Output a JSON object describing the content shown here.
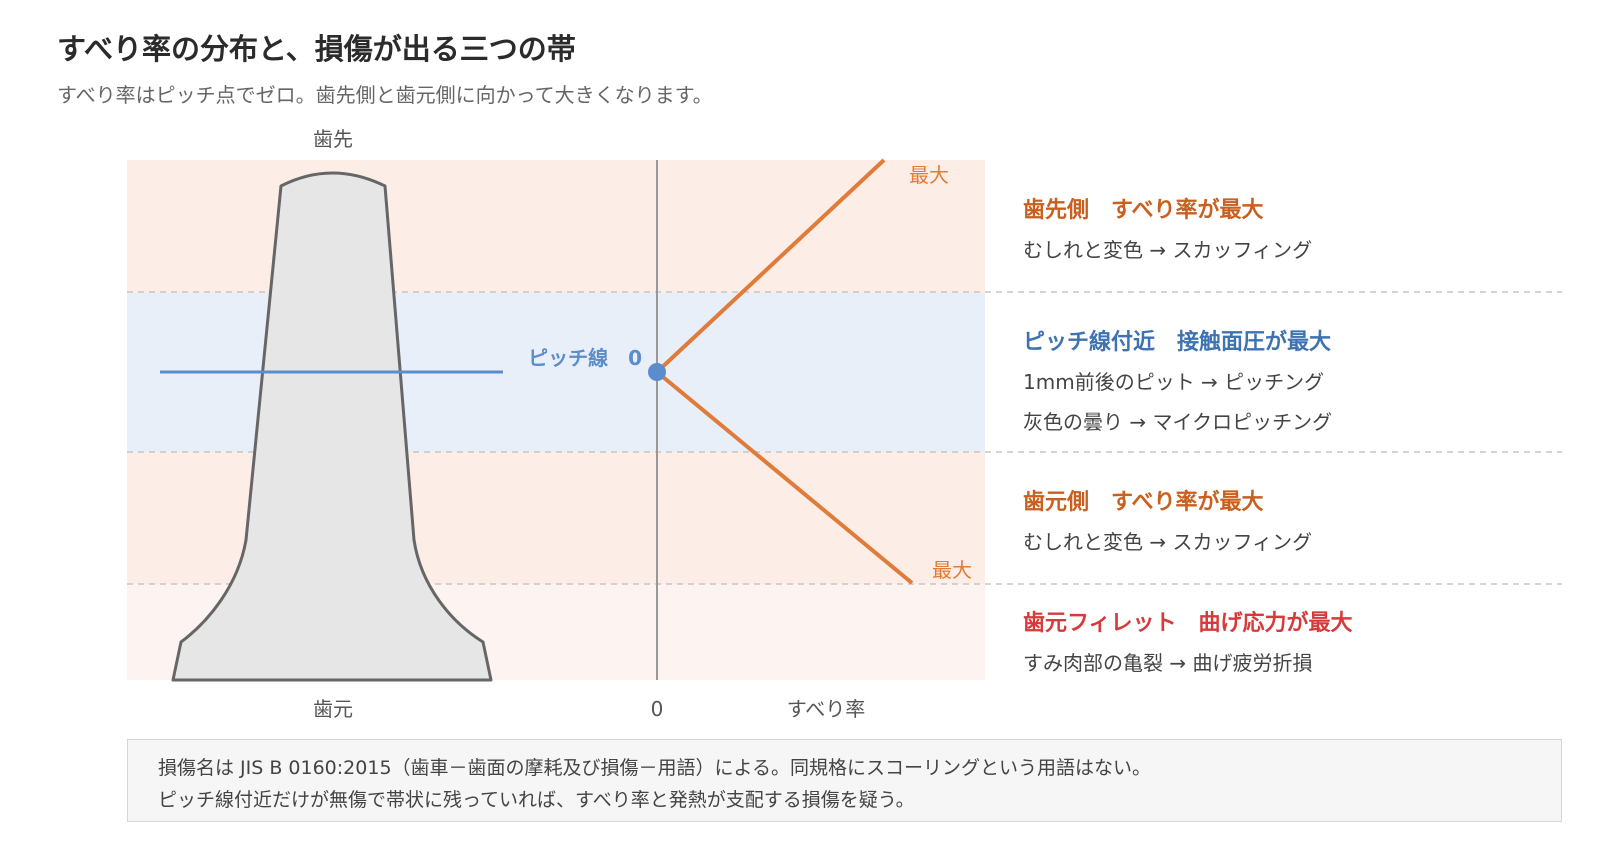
{
  "header": {
    "title": "すべり率の分布と、損傷が出る三つの帯",
    "subtitle": "すべり率はピッチ点でゼロ。歯先側と歯元側に向かって大きくなります。"
  },
  "diagram": {
    "tip_label": "歯先",
    "root_label": "歯元",
    "pitch_line_label": "ピッチ線　0",
    "zero_label": "0",
    "axis_label": "すべり率",
    "max_top_label": "最大",
    "max_bottom_label": "最大"
  },
  "zones": [
    {
      "title": "歯先側　すべり率が最大",
      "desc": [
        "むしれと変色 → スカッフィング"
      ],
      "title_color": "#c9601f"
    },
    {
      "title": "ピッチ線付近　接触面圧が最大",
      "desc": [
        "1mm前後のピット → ピッチング",
        "灰色の曇り → マイクロピッチング"
      ],
      "title_color": "#3f72b0"
    },
    {
      "title": "歯元側　すべり率が最大",
      "desc": [
        "むしれと変色 → スカッフィング"
      ],
      "title_color": "#c9601f"
    },
    {
      "title": "歯元フィレット　曲げ応力が最大",
      "desc": [
        "すみ肉部の亀裂 → 曲げ疲労折損"
      ],
      "title_color": "#d63a3a"
    }
  ],
  "note": {
    "line1": "損傷名は JIS B 0160:2015（歯車－歯面の摩耗及び損傷－用語）による。同規格にスコーリングという用語はない。",
    "line2": "ピッチ線付近だけが無傷で帯状に残っていれば、すべり率と発熱が支配する損傷を疑う。"
  },
  "colors": {
    "tip_band": "#fcede7",
    "pitch_band": "#e8eff9",
    "root_band": "#fcede7",
    "fillet_band": "#fdf3f1",
    "slip_line": "#e07b39",
    "pitch_line": "#5b8ccc",
    "tooth_fill": "#e6e6e6",
    "tooth_stroke": "#666666"
  }
}
